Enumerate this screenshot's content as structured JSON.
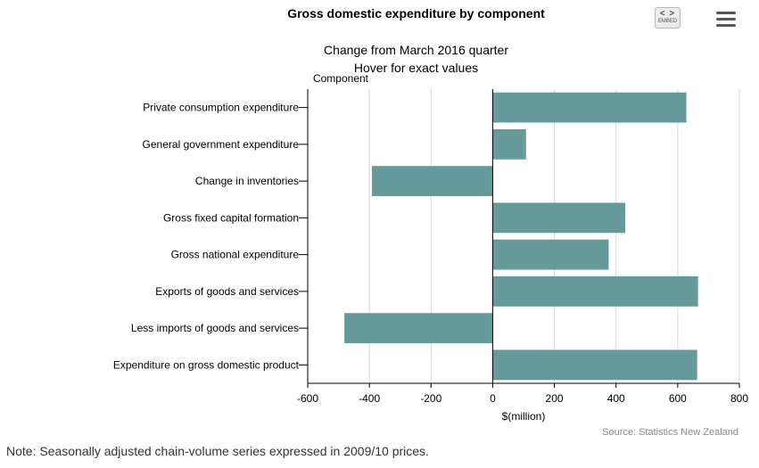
{
  "toolbar": {
    "embed_label": "EMBED",
    "embed_arrows": "< >"
  },
  "source": "Source: Statistics New Zealand",
  "note": "Note: Seasonally adjusted chain-volume series expressed in 2009/10 prices.",
  "colors": {
    "bar": "#669999",
    "grid": "#d9d9d9",
    "axis": "#000000"
  },
  "chart_data": {
    "type": "bar",
    "orientation": "horizontal",
    "title": "Gross domestic expenditure by component",
    "subtitle": [
      "Change from March 2016 quarter",
      "Hover for exact values"
    ],
    "ylabel": "Component",
    "xlabel": "$(million)",
    "xlim": [
      -600,
      800
    ],
    "xticks": [
      -600,
      -400,
      -200,
      0,
      200,
      400,
      600,
      800
    ],
    "grid": true,
    "categories": [
      "Private consumption expenditure",
      "General government expenditure",
      "Change in inventories",
      "Gross fixed capital formation",
      "Gross national expenditure",
      "Exports of goods and services",
      "Less imports of goods and services",
      "Expenditure on gross domestic product"
    ],
    "series": [
      {
        "name": "Change from March 2016 quarter",
        "values": [
          628,
          108,
          -392,
          430,
          376,
          666,
          -481,
          663
        ]
      }
    ]
  }
}
